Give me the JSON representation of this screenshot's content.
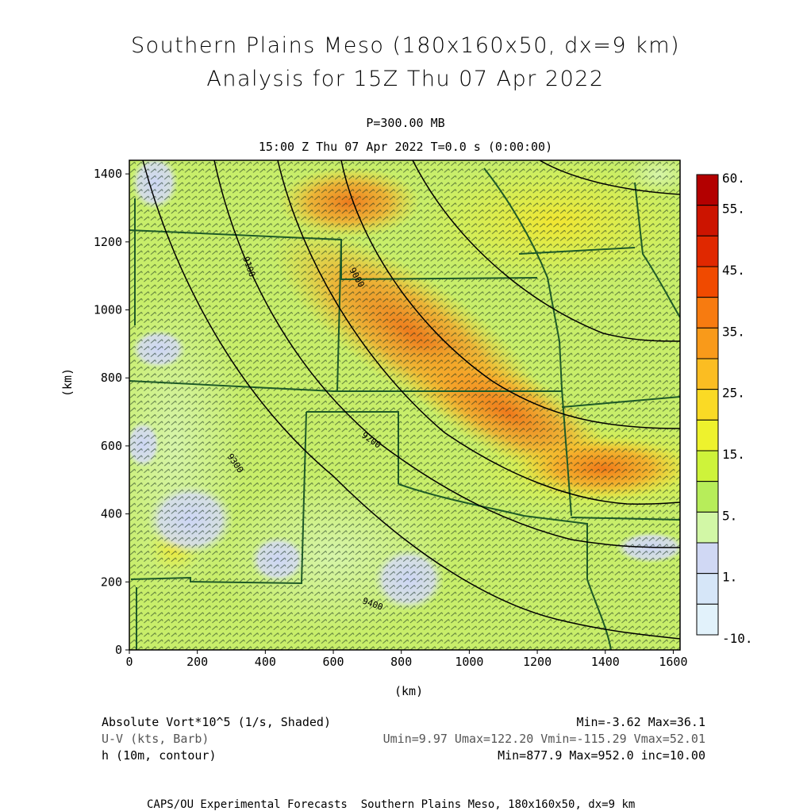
{
  "header": {
    "title_line1": "Southern Plains Meso (180x160x50, dx=9 km)",
    "title_line2": "Analysis for 15Z Thu 07 Apr 2022",
    "level": "P=300.00 MB",
    "valid": "15:00 Z Thu 07 Apr 2022   T=0.0 s (0:00:00)"
  },
  "axes": {
    "x_ticks": [
      "0",
      "200",
      "400",
      "600",
      "800",
      "1000",
      "1200",
      "1400",
      "1600"
    ],
    "y_ticks": [
      "0",
      "200",
      "400",
      "600",
      "800",
      "1000",
      "1200",
      "1400"
    ],
    "x_label": "(km)",
    "y_label": "(km)",
    "x_range": [
      0,
      1620
    ],
    "y_range": [
      0,
      1440
    ]
  },
  "colorbar": {
    "labels": [
      "60.",
      "55.",
      "45.",
      "35.",
      "25.",
      "15.",
      "5.",
      "1.",
      "-10."
    ],
    "colors": [
      "#b30000",
      "#cc1400",
      "#e02800",
      "#f04a00",
      "#f77b10",
      "#f99a1a",
      "#fbbd22",
      "#fada25",
      "#eef22d",
      "#cef33a",
      "#b7ed5a",
      "#d2f7a6",
      "#d0d8f4",
      "#d6e6f8",
      "#e2f2fb"
    ]
  },
  "contours": {
    "labels": [
      "9400",
      "9300",
      "9200",
      "9100",
      "9000"
    ]
  },
  "legend": {
    "field1": "Absolute Vort*10^5 (1/s, Shaded)",
    "field1_stats": "Min=-3.62 Max=36.1",
    "field2": "U-V (kts, Barb)",
    "field2_stats": "Umin=9.97 Umax=122.20 Vmin=-115.29 Vmax=52.01",
    "field3": "h (10m, contour)",
    "field3_stats": "Min=877.9 Max=952.0 inc=10.00"
  },
  "footer": "CAPS/OU Experimental Forecasts  Southern Plains Meso, 180x160x50, dx=9 km"
}
